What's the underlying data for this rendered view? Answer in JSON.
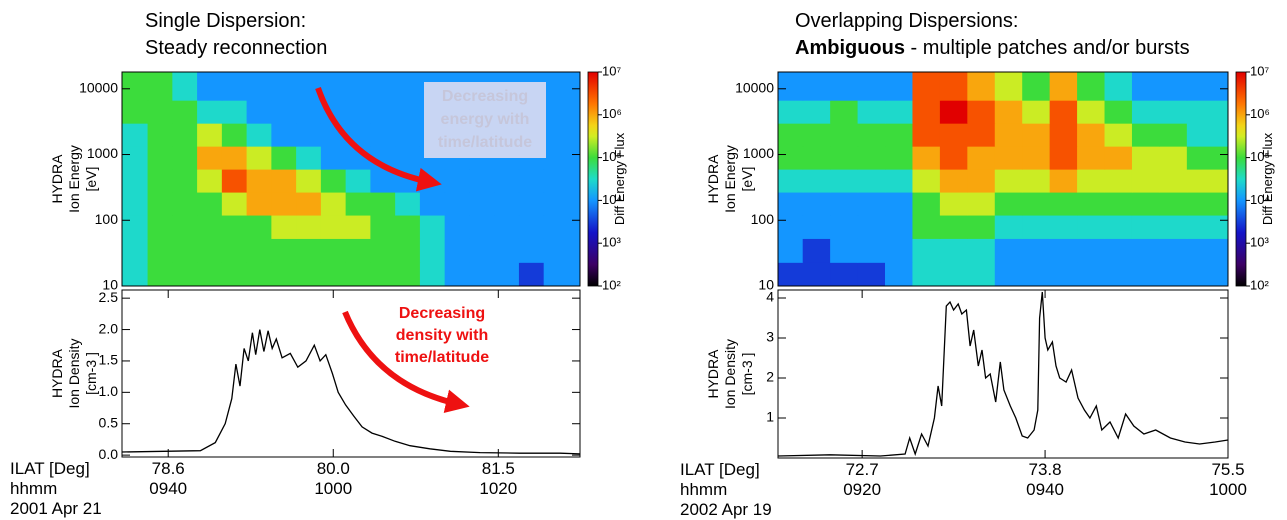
{
  "chart_data": [
    {
      "type": "heatmap",
      "title": "Single Dispersion:",
      "subtitle": "Steady reconnection",
      "ylabel": [
        "HYDRA",
        "Ion Energy",
        "[eV]"
      ],
      "clabel": "Diff Energy Flux",
      "annotation": [
        "Decreasing",
        "energy with",
        "time/latitude"
      ],
      "xlim": [
        574.4,
        629.9
      ],
      "ylim": [
        10,
        18000
      ],
      "ylog": true,
      "yticks": [
        10,
        100,
        1000,
        10000
      ],
      "clim": [
        100,
        10000000
      ],
      "clog": true,
      "cticks": [
        {
          "value": 100,
          "label": "10²"
        },
        {
          "value": 1000,
          "label": "10³"
        },
        {
          "value": 10000,
          "label": "10⁴"
        },
        {
          "value": 100000,
          "label": "10⁵"
        },
        {
          "value": 1000000,
          "label": "10⁶"
        },
        {
          "value": 10000000,
          "label": "10⁷"
        }
      ],
      "x": [
        576,
        579,
        582,
        585,
        588,
        591,
        594,
        597,
        600,
        603,
        606,
        609,
        612,
        615,
        618,
        621,
        624,
        627
      ],
      "y": [
        15,
        35,
        80,
        180,
        400,
        900,
        2000,
        4500,
        10000
      ],
      "z": [
        [
          30000.0,
          100000.0,
          100000.0,
          100000.0,
          100000.0,
          100000.0,
          100000.0,
          100000.0,
          100000.0,
          100000.0,
          100000.0,
          100000.0,
          30000.0,
          10000.0,
          10000.0,
          10000.0,
          3000.0,
          10000.0
        ],
        [
          30000.0,
          100000.0,
          100000.0,
          100000.0,
          100000.0,
          100000.0,
          100000.0,
          100000.0,
          100000.0,
          100000.0,
          100000.0,
          100000.0,
          30000.0,
          10000.0,
          10000.0,
          10000.0,
          10000.0,
          10000.0
        ],
        [
          30000.0,
          100000.0,
          100000.0,
          100000.0,
          100000.0,
          100000.0,
          300000.0,
          300000.0,
          300000.0,
          300000.0,
          100000.0,
          100000.0,
          30000.0,
          10000.0,
          10000.0,
          10000.0,
          10000.0,
          10000.0
        ],
        [
          30000.0,
          100000.0,
          100000.0,
          100000.0,
          300000.0,
          1000000.0,
          1000000.0,
          1000000.0,
          300000.0,
          100000.0,
          100000.0,
          30000.0,
          10000.0,
          10000.0,
          10000.0,
          10000.0,
          10000.0,
          10000.0
        ],
        [
          30000.0,
          100000.0,
          100000.0,
          300000.0,
          3000000.0,
          1000000.0,
          1000000.0,
          300000.0,
          100000.0,
          30000.0,
          10000.0,
          10000.0,
          10000.0,
          10000.0,
          10000.0,
          10000.0,
          10000.0,
          10000.0
        ],
        [
          30000.0,
          100000.0,
          100000.0,
          1000000.0,
          1000000.0,
          300000.0,
          100000.0,
          30000.0,
          10000.0,
          10000.0,
          10000.0,
          10000.0,
          10000.0,
          10000.0,
          10000.0,
          10000.0,
          10000.0,
          10000.0
        ],
        [
          30000.0,
          100000.0,
          100000.0,
          300000.0,
          100000.0,
          30000.0,
          10000.0,
          10000.0,
          10000.0,
          10000.0,
          10000.0,
          10000.0,
          10000.0,
          10000.0,
          10000.0,
          10000.0,
          10000.0,
          10000.0
        ],
        [
          100000.0,
          100000.0,
          100000.0,
          30000.0,
          30000.0,
          10000.0,
          10000.0,
          10000.0,
          10000.0,
          10000.0,
          10000.0,
          10000.0,
          10000.0,
          10000.0,
          10000.0,
          10000.0,
          10000.0,
          10000.0
        ],
        [
          100000.0,
          100000.0,
          30000.0,
          10000.0,
          10000.0,
          10000.0,
          10000.0,
          10000.0,
          10000.0,
          10000.0,
          10000.0,
          10000.0,
          10000.0,
          10000.0,
          10000.0,
          10000.0,
          10000.0,
          10000.0
        ]
      ]
    },
    {
      "type": "line",
      "ylabel": [
        "HYDRA",
        "Ion Density",
        "[cm-3 ]"
      ],
      "color": "#000000",
      "annotation": [
        "Decreasing",
        "density with",
        "time/latitude"
      ],
      "xlabel": [
        "ILAT [Deg]",
        "hhmm"
      ],
      "date": "2001 Apr 21",
      "xlim": [
        574.4,
        629.9
      ],
      "xticks": [
        {
          "value": 580,
          "label": "0940"
        },
        {
          "value": 600,
          "label": "1000"
        },
        {
          "value": 620,
          "label": "1020"
        }
      ],
      "ilat_labels": [
        "78.6",
        "80.0",
        "81.5"
      ],
      "ylim": [
        -0.03,
        2.63
      ],
      "yticks": [
        {
          "value": 0,
          "label": "0.0"
        },
        {
          "value": 0.5,
          "label": "0.5"
        },
        {
          "value": 1,
          "label": "1.0"
        },
        {
          "value": 1.5,
          "label": "1.5"
        },
        {
          "value": 2,
          "label": "2.0"
        },
        {
          "value": 2.5,
          "label": "2.5"
        }
      ],
      "x": [
        574.4,
        583.9,
        585.7,
        586.9,
        587.7,
        588.2,
        588.7,
        589.2,
        589.7,
        590.2,
        590.6,
        591.1,
        591.6,
        592.1,
        592.6,
        593.1,
        593.8,
        594.8,
        595.7,
        596.7,
        597.7,
        598.4,
        599.1,
        599.9,
        600.6,
        601.5,
        602.5,
        603.5,
        604.7,
        605.9,
        607.5,
        609.3,
        611.7,
        614.2,
        617.8,
        622.6,
        627.5,
        629.9
      ],
      "values": [
        0.05,
        0.07,
        0.2,
        0.5,
        0.9,
        1.45,
        1.1,
        1.7,
        1.5,
        1.95,
        1.6,
        2.0,
        1.65,
        1.98,
        1.7,
        1.85,
        1.55,
        1.62,
        1.4,
        1.5,
        1.75,
        1.5,
        1.6,
        1.3,
        1.0,
        0.8,
        0.62,
        0.45,
        0.35,
        0.3,
        0.22,
        0.15,
        0.1,
        0.06,
        0.04,
        0.03,
        0.03,
        0.02
      ]
    },
    {
      "type": "heatmap",
      "title": "Overlapping Dispersions:",
      "subtitle_bold": "Ambiguous",
      "subtitle": " - multiple patches and/or bursts",
      "ylabel": [
        "HYDRA",
        "Ion Energy",
        "[eV]"
      ],
      "clabel": "Diff Energy Flux",
      "xlim": [
        550.8,
        600
      ],
      "ylim": [
        10,
        18000
      ],
      "ylog": true,
      "yticks": [
        10,
        100,
        1000,
        10000
      ],
      "clim": [
        100,
        10000000
      ],
      "clog": true,
      "cticks": [
        {
          "value": 100,
          "label": "10²"
        },
        {
          "value": 1000,
          "label": "10³"
        },
        {
          "value": 10000,
          "label": "10⁴"
        },
        {
          "value": 100000,
          "label": "10⁵"
        },
        {
          "value": 1000000,
          "label": "10⁶"
        },
        {
          "value": 10000000,
          "label": "10⁷"
        }
      ],
      "x": [
        552,
        555,
        558,
        561,
        564,
        567,
        570,
        573,
        576,
        579,
        582,
        585,
        588,
        591,
        594,
        597
      ],
      "y": [
        15,
        35,
        80,
        180,
        400,
        900,
        2000,
        4500,
        10000
      ],
      "z": [
        [
          3000.0,
          3000.0,
          3000.0,
          3000.0,
          10000.0,
          30000.0,
          30000.0,
          30000.0,
          10000.0,
          10000.0,
          10000.0,
          10000.0,
          10000.0,
          10000.0,
          10000.0,
          10000.0
        ],
        [
          10000.0,
          3000.0,
          10000.0,
          10000.0,
          10000.0,
          30000.0,
          30000.0,
          30000.0,
          10000.0,
          10000.0,
          10000.0,
          10000.0,
          10000.0,
          10000.0,
          10000.0,
          10000.0
        ],
        [
          10000.0,
          10000.0,
          10000.0,
          10000.0,
          10000.0,
          100000.0,
          100000.0,
          100000.0,
          30000.0,
          30000.0,
          30000.0,
          30000.0,
          30000.0,
          30000.0,
          30000.0,
          30000.0
        ],
        [
          10000.0,
          10000.0,
          10000.0,
          10000.0,
          10000.0,
          100000.0,
          300000.0,
          300000.0,
          100000.0,
          100000.0,
          100000.0,
          100000.0,
          100000.0,
          100000.0,
          100000.0,
          100000.0
        ],
        [
          30000.0,
          30000.0,
          30000.0,
          30000.0,
          30000.0,
          300000.0,
          1000000.0,
          1000000.0,
          300000.0,
          300000.0,
          1000000.0,
          300000.0,
          300000.0,
          300000.0,
          300000.0,
          300000.0
        ],
        [
          100000.0,
          100000.0,
          100000.0,
          100000.0,
          100000.0,
          1000000.0,
          3000000.0,
          1000000.0,
          1000000.0,
          1000000.0,
          3000000.0,
          1000000.0,
          1000000.0,
          300000.0,
          300000.0,
          100000.0
        ],
        [
          100000.0,
          100000.0,
          100000.0,
          100000.0,
          100000.0,
          3000000.0,
          3000000.0,
          3000000.0,
          1000000.0,
          1000000.0,
          3000000.0,
          1000000.0,
          300000.0,
          100000.0,
          100000.0,
          30000.0
        ],
        [
          30000.0,
          30000.0,
          100000.0,
          30000.0,
          30000.0,
          3000000.0,
          10000000.0,
          3000000.0,
          1000000.0,
          300000.0,
          3000000.0,
          300000.0,
          100000.0,
          30000.0,
          30000.0,
          30000.0
        ],
        [
          10000.0,
          10000.0,
          10000.0,
          10000.0,
          10000.0,
          3000000.0,
          3000000.0,
          1000000.0,
          300000.0,
          100000.0,
          1000000.0,
          100000.0,
          30000.0,
          10000.0,
          10000.0,
          10000.0
        ]
      ]
    },
    {
      "type": "line",
      "ylabel": [
        "HYDRA",
        "Ion Density",
        "[cm-3 ]"
      ],
      "color": "#000000",
      "xlabel": [
        "ILAT [Deg]",
        "hhmm"
      ],
      "date": "2002 Apr 19",
      "xlim": [
        550.8,
        600
      ],
      "xticks": [
        {
          "value": 560,
          "label": "0920"
        },
        {
          "value": 580,
          "label": "0940"
        },
        {
          "value": 600,
          "label": "1000"
        }
      ],
      "ilat_labels": [
        "72.7",
        "73.8",
        "75.5"
      ],
      "ylim": [
        0,
        4.2
      ],
      "yticks": [
        1,
        2,
        3,
        4
      ],
      "x": [
        550.8,
        556.5,
        562.0,
        564.7,
        565.2,
        565.8,
        566.5,
        567.2,
        567.9,
        568.3,
        568.7,
        569.2,
        569.6,
        570.0,
        570.5,
        570.9,
        571.4,
        571.8,
        572.2,
        572.7,
        573.1,
        573.5,
        574.0,
        574.6,
        575.1,
        575.5,
        576.2,
        576.8,
        577.5,
        578.1,
        578.8,
        579.2,
        579.4,
        579.7,
        580.0,
        580.3,
        580.8,
        581.2,
        581.6,
        582.3,
        582.9,
        583.6,
        584.3,
        584.9,
        585.6,
        586.2,
        587.1,
        588.0,
        588.8,
        589.7,
        590.8,
        592.1,
        593.7,
        595.3,
        596.9,
        598.6,
        600.0
      ],
      "values": [
        0.05,
        0.08,
        0.05,
        0.1,
        0.5,
        0.1,
        0.6,
        0.3,
        1.0,
        1.8,
        1.3,
        3.8,
        3.9,
        3.7,
        3.85,
        3.6,
        3.7,
        2.8,
        3.2,
        2.3,
        2.7,
        2.0,
        2.1,
        1.4,
        2.4,
        1.7,
        1.3,
        1.0,
        0.55,
        0.5,
        0.7,
        1.2,
        3.5,
        4.15,
        3.0,
        2.7,
        2.9,
        2.3,
        2.0,
        1.9,
        2.2,
        1.5,
        1.2,
        1.0,
        1.3,
        0.7,
        0.9,
        0.5,
        1.1,
        0.8,
        0.6,
        0.7,
        0.5,
        0.4,
        0.35,
        0.4,
        0.45
      ]
    }
  ]
}
